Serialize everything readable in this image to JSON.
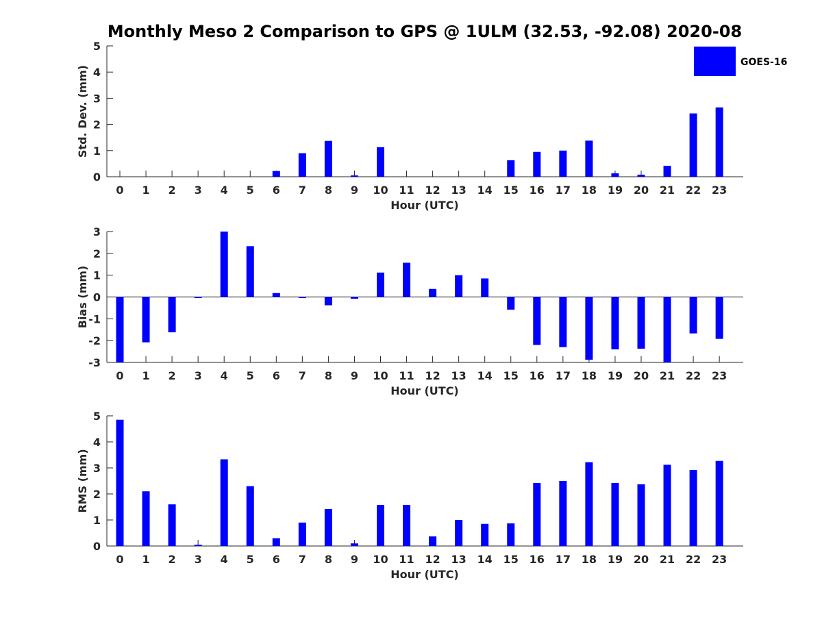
{
  "title": "Monthly Meso 2 Comparison to GPS @ 1ULM (32.53, -92.08) 2020-08",
  "legend": {
    "label": "GOES-16",
    "color": "#0000ff"
  },
  "colors": {
    "bar": "#0000ff",
    "axis": "#262626",
    "zero_line": "#000000"
  },
  "chart_data": [
    {
      "type": "bar",
      "title": "Monthly Meso 2 Comparison to GPS @ 1ULM (32.53, -92.08) 2020-08",
      "xlabel": "Hour (UTC)",
      "ylabel": "Std. Dev. (mm)",
      "ylim": [
        0,
        5
      ],
      "yticks": [
        0,
        1,
        2,
        3,
        4,
        5
      ],
      "categories": [
        "0",
        "1",
        "2",
        "3",
        "4",
        "5",
        "6",
        "7",
        "8",
        "9",
        "10",
        "11",
        "12",
        "13",
        "14",
        "15",
        "16",
        "17",
        "18",
        "19",
        "20",
        "21",
        "22",
        "23"
      ],
      "series": [
        {
          "name": "GOES-16",
          "values": [
            0,
            0,
            0,
            0,
            0,
            0,
            0.22,
            0.9,
            1.37,
            0.05,
            1.13,
            0,
            0,
            0,
            0,
            0.63,
            0.95,
            1.0,
            1.38,
            0.13,
            0.08,
            0.42,
            2.42,
            2.65
          ]
        }
      ],
      "legend": "top-right",
      "grid": false
    },
    {
      "type": "bar",
      "xlabel": "Hour (UTC)",
      "ylabel": "Bias (mm)",
      "ylim": [
        -3,
        3
      ],
      "yticks": [
        -3,
        -2,
        -1,
        0,
        1,
        2,
        3
      ],
      "categories": [
        "0",
        "1",
        "2",
        "3",
        "4",
        "5",
        "6",
        "7",
        "8",
        "9",
        "10",
        "11",
        "12",
        "13",
        "14",
        "15",
        "16",
        "17",
        "18",
        "19",
        "20",
        "21",
        "22",
        "23"
      ],
      "series": [
        {
          "name": "GOES-16",
          "values": [
            -3.0,
            -2.08,
            -1.62,
            -0.05,
            3.0,
            2.33,
            0.18,
            -0.05,
            -0.38,
            -0.08,
            1.12,
            1.57,
            0.37,
            1.0,
            0.85,
            -0.58,
            -2.2,
            -2.3,
            -2.88,
            -2.4,
            -2.37,
            -3.0,
            -1.67,
            -1.92
          ]
        }
      ],
      "grid": false
    },
    {
      "type": "bar",
      "xlabel": "Hour (UTC)",
      "ylabel": "RMS (mm)",
      "ylim": [
        0,
        5
      ],
      "yticks": [
        0,
        1,
        2,
        3,
        4,
        5
      ],
      "categories": [
        "0",
        "1",
        "2",
        "3",
        "4",
        "5",
        "6",
        "7",
        "8",
        "9",
        "10",
        "11",
        "12",
        "13",
        "14",
        "15",
        "16",
        "17",
        "18",
        "19",
        "20",
        "21",
        "22",
        "23"
      ],
      "series": [
        {
          "name": "GOES-16",
          "values": [
            4.85,
            2.1,
            1.6,
            0.05,
            3.33,
            2.3,
            0.3,
            0.9,
            1.42,
            0.1,
            1.58,
            1.58,
            0.37,
            1.0,
            0.85,
            0.87,
            2.42,
            2.5,
            3.22,
            2.42,
            2.37,
            3.12,
            2.92,
            3.27
          ]
        }
      ],
      "grid": false
    }
  ]
}
